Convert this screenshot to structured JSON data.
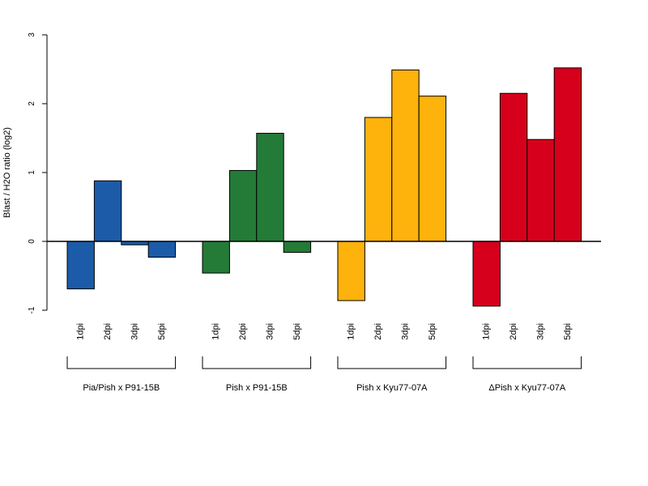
{
  "chart_data": {
    "type": "bar",
    "title": "",
    "xlabel": "",
    "ylabel": "Blast / H2O ratio (log2)",
    "ylim": [
      -1,
      3
    ],
    "yticks": [
      -1,
      0,
      1,
      2,
      3
    ],
    "grid": false,
    "categories": [
      "1dpi",
      "2dpi",
      "3dpi",
      "5dpi"
    ],
    "groups": [
      {
        "name": "Pia/Pish x P91-15B",
        "color": "#1c5ba8",
        "values": [
          -0.69,
          0.88,
          -0.05,
          -0.23
        ]
      },
      {
        "name": "Pish x P91-15B",
        "color": "#237b37",
        "values": [
          -0.46,
          1.03,
          1.57,
          -0.16
        ]
      },
      {
        "name": "Pish x Kyu77-07A",
        "color": "#fdb20c",
        "values": [
          -0.86,
          1.8,
          2.49,
          2.11
        ]
      },
      {
        "name": "ΔPish x Kyu77-07A",
        "color": "#d7001c",
        "values": [
          -0.94,
          2.15,
          1.48,
          2.52
        ]
      }
    ]
  }
}
